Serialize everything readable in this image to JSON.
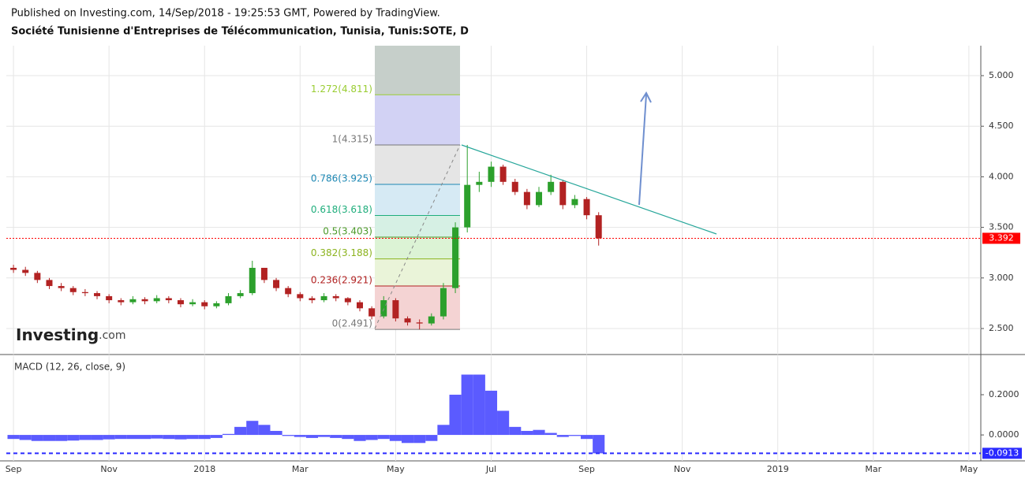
{
  "header": {
    "published": "Published on Investing.com, 14/Sep/2018 - 19:25:53 GMT, Powered by TradingView.",
    "title": "Société Tunisienne d'Entreprises de Télécommunication, Tunisia, Tunis:SOTE, D",
    "logo": "Investing",
    "logo_suffix": ".com"
  },
  "chart_data": [
    {
      "type": "candlestick",
      "xlim": [
        -0.15,
        20.25
      ],
      "xticks": [
        {
          "value": 0,
          "label": "Sep"
        },
        {
          "value": 2,
          "label": "Nov"
        },
        {
          "value": 4,
          "label": "2018"
        },
        {
          "value": 6,
          "label": "Mar"
        },
        {
          "value": 8,
          "label": "May"
        },
        {
          "value": 10,
          "label": "Jul"
        },
        {
          "value": 12,
          "label": "Sep"
        },
        {
          "value": 14,
          "label": "Nov"
        },
        {
          "value": 16,
          "label": "2019"
        },
        {
          "value": 18,
          "label": "Mar"
        },
        {
          "value": 20,
          "label": "May"
        }
      ],
      "ylim": [
        2.243,
        5.296
      ],
      "yticks": [
        {
          "value": 2.5,
          "label": "2.500"
        },
        {
          "value": 3,
          "label": "3.000"
        },
        {
          "value": 3.5,
          "label": "3.500"
        },
        {
          "value": 4,
          "label": "4.000"
        },
        {
          "value": 4.5,
          "label": "4.500"
        },
        {
          "value": 5,
          "label": "5.000"
        }
      ],
      "grid": true,
      "up_color": "#2ca02c",
      "down_color": "#b22222",
      "x": [
        0,
        0.25,
        0.5,
        0.75,
        1,
        1.25,
        1.5,
        1.75,
        2,
        2.25,
        2.5,
        2.75,
        3,
        3.25,
        3.5,
        3.75,
        4,
        4.25,
        4.5,
        4.75,
        5,
        5.25,
        5.5,
        5.75,
        6,
        6.25,
        6.5,
        6.75,
        7,
        7.25,
        7.5,
        7.75,
        8,
        8.25,
        8.5,
        8.75,
        9,
        9.25,
        9.5,
        9.75,
        10,
        10.25,
        10.5,
        10.75,
        11,
        11.25,
        11.5,
        11.75,
        12,
        12.25
      ],
      "open": [
        3.1,
        3.08,
        3.05,
        2.98,
        2.92,
        2.9,
        2.86,
        2.85,
        2.82,
        2.78,
        2.76,
        2.79,
        2.77,
        2.8,
        2.78,
        2.74,
        2.76,
        2.72,
        2.75,
        2.82,
        2.85,
        3.1,
        2.98,
        2.9,
        2.84,
        2.8,
        2.78,
        2.82,
        2.8,
        2.76,
        2.7,
        2.62,
        2.78,
        2.6,
        2.56,
        2.55,
        2.62,
        2.9,
        3.5,
        3.92,
        3.95,
        4.1,
        3.95,
        3.85,
        3.72,
        3.85,
        3.95,
        3.72,
        3.78,
        3.62
      ],
      "high": [
        3.13,
        3.11,
        3.07,
        3.0,
        2.95,
        2.92,
        2.89,
        2.87,
        2.84,
        2.8,
        2.82,
        2.81,
        2.83,
        2.82,
        2.8,
        2.79,
        2.78,
        2.77,
        2.85,
        2.88,
        3.17,
        3.1,
        3.0,
        2.92,
        2.86,
        2.82,
        2.85,
        2.84,
        2.81,
        2.78,
        2.72,
        2.82,
        2.8,
        2.62,
        2.59,
        2.65,
        2.95,
        3.55,
        4.315,
        4.05,
        4.15,
        4.12,
        3.98,
        3.88,
        3.9,
        4.02,
        3.97,
        3.82,
        3.8,
        3.65
      ],
      "low": [
        3.05,
        3.02,
        2.95,
        2.89,
        2.87,
        2.83,
        2.82,
        2.79,
        2.75,
        2.73,
        2.74,
        2.74,
        2.75,
        2.75,
        2.71,
        2.72,
        2.69,
        2.7,
        2.73,
        2.8,
        2.83,
        2.95,
        2.87,
        2.81,
        2.77,
        2.75,
        2.76,
        2.77,
        2.73,
        2.67,
        2.59,
        2.6,
        2.57,
        2.53,
        2.491,
        2.53,
        2.59,
        2.85,
        3.45,
        3.85,
        3.9,
        3.92,
        3.82,
        3.68,
        3.7,
        3.82,
        3.68,
        3.69,
        3.58,
        3.32
      ],
      "close": [
        3.08,
        3.05,
        2.98,
        2.92,
        2.9,
        2.86,
        2.85,
        2.82,
        2.78,
        2.76,
        2.79,
        2.77,
        2.8,
        2.78,
        2.74,
        2.76,
        2.72,
        2.75,
        2.82,
        2.85,
        3.1,
        2.98,
        2.9,
        2.84,
        2.8,
        2.78,
        2.82,
        2.8,
        2.76,
        2.7,
        2.62,
        2.78,
        2.6,
        2.56,
        2.55,
        2.62,
        2.9,
        3.5,
        3.92,
        3.95,
        4.1,
        3.95,
        3.85,
        3.72,
        3.85,
        3.95,
        3.72,
        3.78,
        3.62,
        3.392
      ],
      "last_price": 3.392,
      "last_price_color": "#ff0000",
      "fib_levels": [
        {
          "value": 2.491,
          "label": "0(2.491)",
          "color": "#777777"
        },
        {
          "value": 2.921,
          "label": "0.236(2.921)",
          "color": "#b22222"
        },
        {
          "value": 3.188,
          "label": "0.382(3.188)",
          "color": "#8cb31e"
        },
        {
          "value": 3.403,
          "label": "0.5(3.403)",
          "color": "#4c9a2a"
        },
        {
          "value": 3.618,
          "label": "0.618(3.618)",
          "color": "#1fae7c"
        },
        {
          "value": 3.925,
          "label": "0.786(3.925)",
          "color": "#1e88b4"
        },
        {
          "value": 4.315,
          "label": "1(4.315)",
          "color": "#777777"
        },
        {
          "value": 4.811,
          "label": "1.272(4.811)",
          "color": "#9acd32"
        }
      ]
    },
    {
      "type": "histogram-macd",
      "title": "MACD (12, 26, close, 9)",
      "color": "#5b5bff",
      "ylim": [
        -0.129,
        0.392
      ],
      "yticks": [
        {
          "value": 0,
          "label": "0.0000"
        },
        {
          "value": 0.2,
          "label": "0.2000"
        }
      ],
      "x": [
        0,
        0.25,
        0.5,
        0.75,
        1,
        1.25,
        1.5,
        1.75,
        2,
        2.25,
        2.5,
        2.75,
        3,
        3.25,
        3.5,
        3.75,
        4,
        4.25,
        4.5,
        4.75,
        5,
        5.25,
        5.5,
        5.75,
        6,
        6.25,
        6.5,
        6.75,
        7,
        7.25,
        7.5,
        7.75,
        8,
        8.25,
        8.5,
        8.75,
        9,
        9.25,
        9.5,
        9.75,
        10,
        10.25,
        10.5,
        10.75,
        11,
        11.25,
        11.5,
        11.75,
        12,
        12.25
      ],
      "values": [
        -0.02,
        -0.025,
        -0.03,
        -0.03,
        -0.03,
        -0.028,
        -0.025,
        -0.025,
        -0.022,
        -0.02,
        -0.02,
        -0.02,
        -0.018,
        -0.02,
        -0.022,
        -0.02,
        -0.02,
        -0.015,
        0.005,
        0.04,
        0.07,
        0.05,
        0.02,
        -0.005,
        -0.01,
        -0.015,
        -0.01,
        -0.015,
        -0.02,
        -0.03,
        -0.025,
        -0.02,
        -0.03,
        -0.04,
        -0.04,
        -0.03,
        0.05,
        0.2,
        0.3,
        0.3,
        0.22,
        0.12,
        0.04,
        0.02,
        0.025,
        0.01,
        -0.01,
        -0.005,
        -0.02,
        -0.0913
      ],
      "last_value": -0.0913,
      "last_color": "#2a2aff"
    }
  ]
}
